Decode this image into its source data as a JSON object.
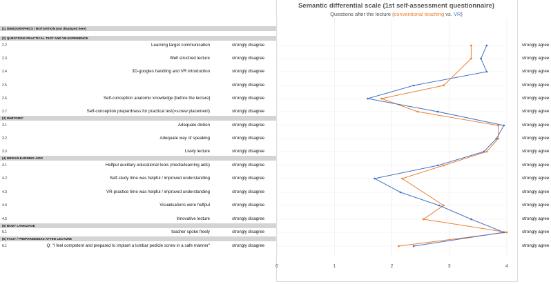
{
  "left_scale_label": "strongly disagree",
  "right_scale_label": "strongly agree",
  "colors": {
    "conventional": "#ed7d31",
    "vr": "#4472c4",
    "section_bg": "#d4d4d4"
  },
  "sections": [
    {
      "label": "(1) DEMOGRAPHICS / MOTIVATION (not displayed here)",
      "after_row": -1
    },
    {
      "label": "(2) QUESTIONS PRACTICAL TEST AND VR-EXPERIENCE",
      "after_row": -1
    },
    {
      "label": "(3) RHETORIC",
      "after_row": 5
    },
    {
      "label": "(4) MEDIA/LEARNING AIDS",
      "after_row": 8
    },
    {
      "label": "(5) BODY LANGUAGE",
      "after_row": 13
    },
    {
      "label": "(6) FACIT / PREPARDENESS AFTER LECTURE",
      "after_row": 14
    }
  ],
  "chart_data": {
    "type": "line",
    "orientation": "vertical-profile",
    "title": "Semantic differential scale (1st self-assessment questionnaire)",
    "subtitle_prefix": "Questions after the lecture (",
    "subtitle_middle": " vs. ",
    "subtitle_suffix": ")",
    "xlim": [
      0,
      4
    ],
    "xticks": [
      0,
      1,
      2,
      3,
      4
    ],
    "legend": [
      "conventional teaching",
      "VR"
    ],
    "items": [
      {
        "id": "2.2",
        "label": "Learning target communication"
      },
      {
        "id": "2.3",
        "label": "Well structred lecture"
      },
      {
        "id": "2.4",
        "label": "3D-googles handling and VR introduction"
      },
      {
        "id": "2.5",
        "label": ""
      },
      {
        "id": "2.6",
        "label": "Self-conception anatomic knowledge [before the lecture]"
      },
      {
        "id": "2.7",
        "label": "Self-conception prepardness for practical test(=screw placement)"
      },
      {
        "id": "3.1",
        "label": "Adequate diction"
      },
      {
        "id": "3.2",
        "label": "Adequate way of speaking"
      },
      {
        "id": "3.3",
        "label": "Lively lecture"
      },
      {
        "id": "4.1",
        "label": "Helfpul auxillary educational tools (media/learning aids)"
      },
      {
        "id": "4.2",
        "label": "Self-study time was helpful / improved understanding"
      },
      {
        "id": "4.3",
        "label": "VR-practice time was helpful / improved understanding"
      },
      {
        "id": "4.4",
        "label": "Visualisations were helfpul"
      },
      {
        "id": "4.5",
        "label": "Innovative lecture"
      },
      {
        "id": "5.1",
        "label": "teacher spoke freely"
      },
      {
        "id": "6.1",
        "label": "Q: \"I feel competent and prepared to implant a lumbar pedicle screw in a safe manner\""
      }
    ],
    "series": [
      {
        "name": "conventional teaching",
        "color": "#ed7d31",
        "values": [
          3.38,
          3.38,
          null,
          2.9,
          1.82,
          2.45,
          3.85,
          3.85,
          3.65,
          2.9,
          2.18,
          null,
          2.9,
          2.55,
          4.0,
          2.12
        ]
      },
      {
        "name": "VR",
        "color": "#4472c4",
        "values": [
          3.65,
          3.55,
          3.65,
          2.38,
          1.58,
          2.8,
          3.95,
          3.82,
          3.6,
          2.8,
          1.7,
          2.15,
          2.82,
          3.38,
          3.95,
          2.38
        ]
      }
    ]
  }
}
